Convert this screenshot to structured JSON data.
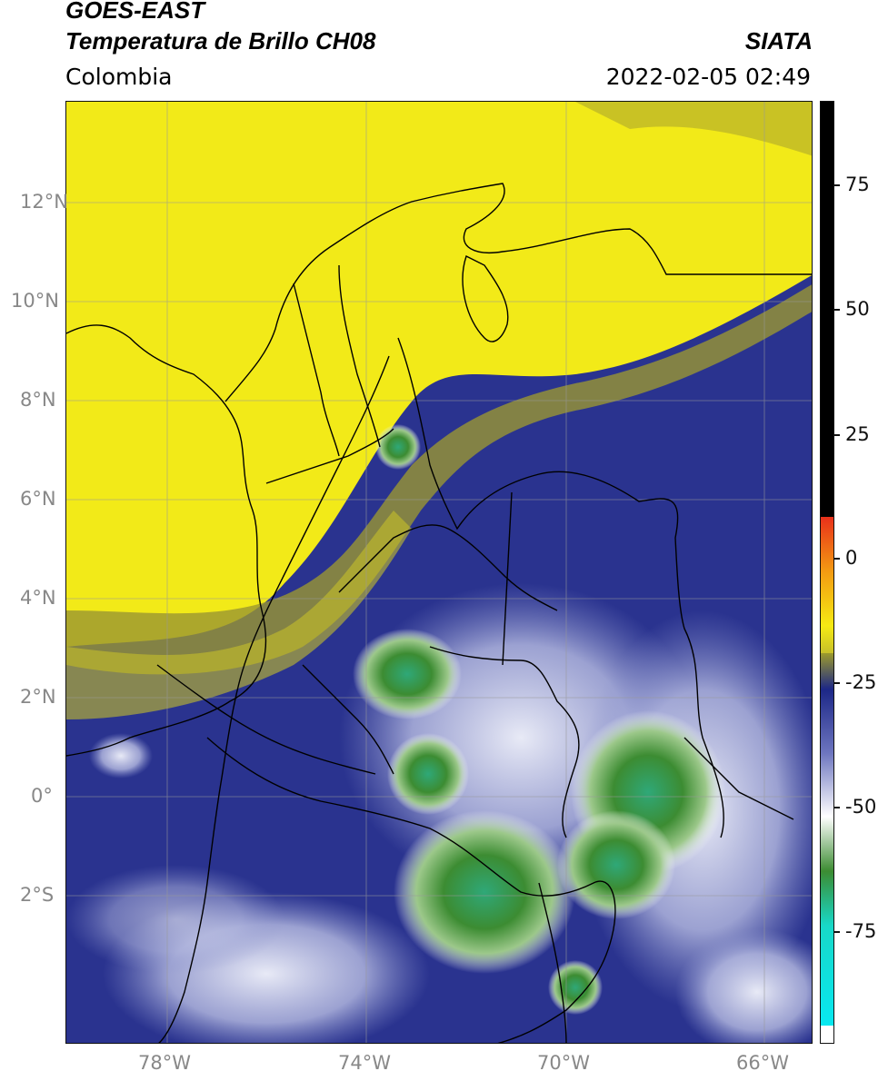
{
  "header": {
    "title_line1": "GOES-EAST",
    "title_line2": "Temperatura de Brillo CH08",
    "org": "SIATA",
    "region": "Colombia",
    "datetime": "2022-02-05 02:49"
  },
  "map": {
    "lat_labels": [
      "12°N",
      "10°N",
      "8°N",
      "6°N",
      "4°N",
      "2°N",
      "0°",
      "2°S"
    ],
    "lon_labels": [
      "78°W",
      "74°W",
      "70°W",
      "66°W"
    ]
  },
  "colorbar": {
    "ticks": [
      "75",
      "50",
      "25",
      "0",
      "-25",
      "-50",
      "-75"
    ],
    "colors": {
      "black": "#000000",
      "red": "#e8301a",
      "orange": "#f39a12",
      "yellow": "#f6ea13",
      "olive": "#9c9a2c",
      "navy": "#1c2787",
      "lavender": "#aab0dc",
      "white": "#ffffff",
      "green": "#3c8c32",
      "teal": "#18d8c8",
      "cyan": "#08e8f0"
    }
  }
}
